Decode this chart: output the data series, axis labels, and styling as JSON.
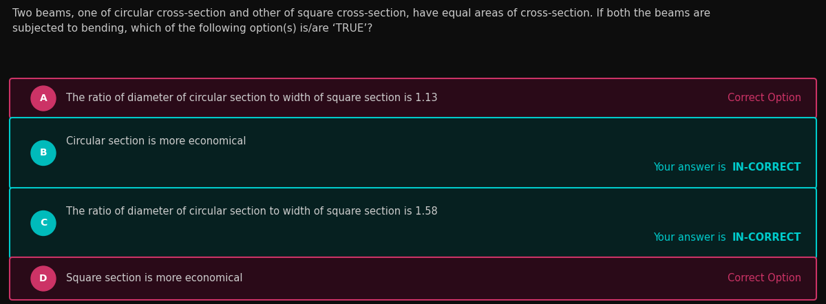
{
  "background_color": "#0d0d0d",
  "question_text": "Two beams, one of circular cross-section and other of square cross-section, have equal areas of cross-section. If both the beams are\nsubjected to bending, which of the following option(s) is/are ‘TRUE’?",
  "question_color": "#c8c8c8",
  "question_fontsize": 11.0,
  "options": [
    {
      "label": "A",
      "text": "The ratio of diameter of circular section to width of square section is 1.13",
      "box_bg": "#2a0a18",
      "box_border": "#cc3366",
      "label_bg": "#cc3366",
      "label_color": "#ffffff",
      "text_color": "#cccccc",
      "status_text": "Correct Option",
      "status_prefix": "",
      "status_bold": "",
      "status_color": "#cc3366",
      "two_line": false
    },
    {
      "label": "B",
      "text": "Circular section is more economical",
      "box_bg": "#062020",
      "box_border": "#00cccc",
      "label_bg": "#00bbbb",
      "label_color": "#ffffff",
      "text_color": "#cccccc",
      "status_text": "Your answer is ",
      "status_prefix": "Your answer is ",
      "status_bold": "IN-CORRECT",
      "status_color": "#00cccc",
      "two_line": true
    },
    {
      "label": "C",
      "text": "The ratio of diameter of circular section to width of square section is 1.58",
      "box_bg": "#062020",
      "box_border": "#00cccc",
      "label_bg": "#00bbbb",
      "label_color": "#ffffff",
      "text_color": "#cccccc",
      "status_text": "Your answer is ",
      "status_prefix": "Your answer is ",
      "status_bold": "IN-CORRECT",
      "status_color": "#00cccc",
      "two_line": true
    },
    {
      "label": "D",
      "text": "Square section is more economical",
      "box_bg": "#2a0a18",
      "box_border": "#cc3366",
      "label_bg": "#cc3366",
      "label_color": "#ffffff",
      "text_color": "#cccccc",
      "status_text": "Correct Option",
      "status_prefix": "",
      "status_bold": "",
      "status_color": "#cc3366",
      "two_line": false
    }
  ],
  "figwidth": 12.0,
  "figheight": 4.42,
  "dpi": 100
}
